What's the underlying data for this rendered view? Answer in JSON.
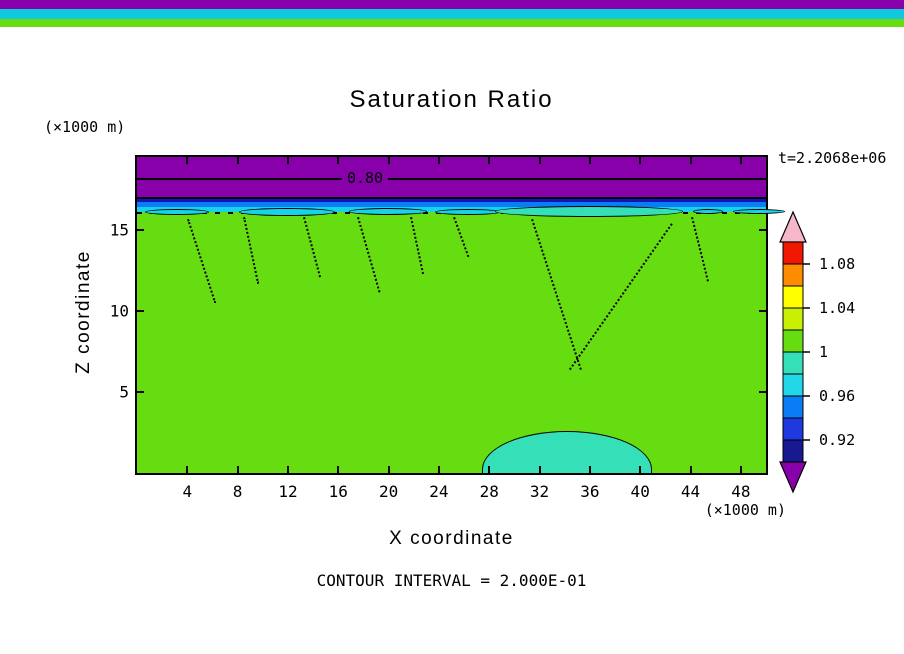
{
  "header": {
    "title": "Saturation Ratio",
    "timestamp": "t=2.2068e+06"
  },
  "top_strips": {
    "purple": "#8800AA",
    "cyan": "#10C8E0",
    "green": "#66DD11"
  },
  "plot": {
    "contour_label": "0.80",
    "footnote": "CONTOUR INTERVAL = 2.000E-01",
    "x_axis": {
      "label": "X coordinate",
      "unit": "(×1000 m)",
      "range": [
        0,
        50
      ],
      "ticks": [
        4,
        8,
        12,
        16,
        20,
        24,
        28,
        32,
        36,
        40,
        44,
        48
      ]
    },
    "y_axis": {
      "label": "Z coordinate",
      "unit": "(×1000 m)",
      "range": [
        0,
        19.5
      ],
      "ticks": [
        15,
        10,
        5
      ]
    },
    "colors": {
      "field_green": "#66DD11",
      "band_purple": "#8800AA",
      "band_navy": "#1414B4",
      "band_blue": "#0A7CF5",
      "band_cyan": "#18D2E8",
      "lens_teal": "#35E0B8"
    }
  },
  "colorbar": {
    "labels": [
      "1.08",
      "1.04",
      "1",
      "0.96",
      "0.92"
    ],
    "segments": [
      "#F01800",
      "#FF8C00",
      "#FFFF00",
      "#C8F000",
      "#66DD11",
      "#35E0B8",
      "#22D8E8",
      "#0A7CF5",
      "#2038E0",
      "#181890"
    ],
    "arrow_top_color": "#F4B8C8",
    "arrow_bottom_color": "#8800AA"
  },
  "chart_data": {
    "type": "heatmap",
    "title": "Saturation Ratio",
    "xlabel": "X coordinate (×1000 m)",
    "ylabel": "Z coordinate (×1000 m)",
    "x_range": [
      0,
      50
    ],
    "y_range": [
      0,
      19.5
    ],
    "time_annotation": "t=2.2068e+06",
    "contour_interval": "2.000E-01",
    "labeled_contours": [
      0.8
    ],
    "colorbar_ticks": [
      1.08,
      1.04,
      1,
      0.96,
      0.92
    ],
    "colorbar_colors_top_to_bottom": [
      "pink (>1.10)",
      "red",
      "orange",
      "yellow",
      "yellow-green",
      "green",
      "teal",
      "cyan",
      "sky-blue",
      "blue",
      "navy",
      "purple (<0.90)"
    ],
    "regions": [
      {
        "name": "surface-band",
        "z_range": [
          18.0,
          19.5
        ],
        "approx_value": 0.8,
        "color": "#8800AA"
      },
      {
        "name": "transition-bands",
        "z_range": [
          16.9,
          18.0
        ],
        "approx_values": [
          0.9,
          0.94,
          0.97
        ],
        "colors": [
          "#1414B4",
          "#0A7CF5",
          "#18D2E8"
        ]
      },
      {
        "name": "main-field",
        "z_range": [
          0,
          16.9
        ],
        "approx_value": 1.0,
        "color": "#66DD11"
      },
      {
        "name": "near-surface-lens",
        "x_range": [
          28,
          43
        ],
        "z_center": 16.3,
        "approx_value": 0.98,
        "color": "#35E0B8"
      },
      {
        "name": "bottom-pocket",
        "x_range": [
          27.5,
          41
        ],
        "z_range": [
          0,
          2.6
        ],
        "approx_value": 0.98,
        "color": "#35E0B8"
      }
    ]
  }
}
